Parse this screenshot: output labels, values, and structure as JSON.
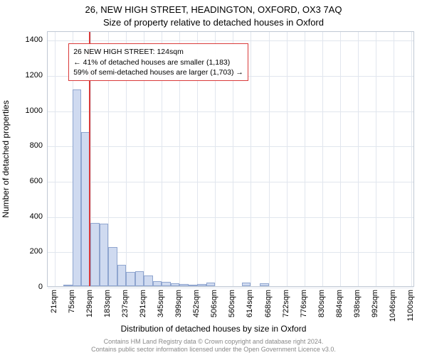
{
  "title": "26, NEW HIGH STREET, HEADINGTON, OXFORD, OX3 7AQ",
  "subtitle": "Size of property relative to detached houses in Oxford",
  "y_axis_label": "Number of detached properties",
  "x_axis_label": "Distribution of detached houses by size in Oxford",
  "chart": {
    "type": "histogram",
    "background_color": "#ffffff",
    "grid_color": "#e1e6ee",
    "border_color": "#bfc8d4",
    "bar_fill": "#cfdaf0",
    "bar_stroke": "#8fa5cf",
    "marker_color": "#d93a3a",
    "ylim": [
      0,
      1450
    ],
    "xlim": [
      0,
      1110
    ],
    "y_ticks": [
      0,
      200,
      400,
      600,
      800,
      1000,
      1200,
      1400
    ],
    "x_tick_values": [
      21,
      75,
      129,
      183,
      237,
      291,
      345,
      399,
      452,
      506,
      560,
      614,
      668,
      722,
      776,
      830,
      884,
      938,
      992,
      1046,
      1100
    ],
    "x_tick_labels": [
      "21sqm",
      "75sqm",
      "129sqm",
      "183sqm",
      "237sqm",
      "291sqm",
      "345sqm",
      "399sqm",
      "452sqm",
      "506sqm",
      "560sqm",
      "614sqm",
      "668sqm",
      "722sqm",
      "776sqm",
      "830sqm",
      "884sqm",
      "938sqm",
      "992sqm",
      "1046sqm",
      "1100sqm"
    ],
    "bin_width": 27,
    "bins": [
      {
        "x": 21,
        "count": 0
      },
      {
        "x": 48,
        "count": 10
      },
      {
        "x": 75,
        "count": 1115
      },
      {
        "x": 102,
        "count": 875
      },
      {
        "x": 129,
        "count": 360
      },
      {
        "x": 156,
        "count": 355
      },
      {
        "x": 183,
        "count": 220
      },
      {
        "x": 210,
        "count": 120
      },
      {
        "x": 237,
        "count": 80
      },
      {
        "x": 264,
        "count": 85
      },
      {
        "x": 291,
        "count": 60
      },
      {
        "x": 318,
        "count": 30
      },
      {
        "x": 345,
        "count": 25
      },
      {
        "x": 372,
        "count": 18
      },
      {
        "x": 399,
        "count": 12
      },
      {
        "x": 426,
        "count": 10
      },
      {
        "x": 452,
        "count": 12
      },
      {
        "x": 479,
        "count": 20
      },
      {
        "x": 506,
        "count": 0
      },
      {
        "x": 533,
        "count": 0
      },
      {
        "x": 560,
        "count": 0
      },
      {
        "x": 587,
        "count": 20
      },
      {
        "x": 614,
        "count": 0
      },
      {
        "x": 641,
        "count": 18
      },
      {
        "x": 668,
        "count": 0
      }
    ],
    "marker_x": 124
  },
  "annotation": {
    "border_color": "#d93a3a",
    "bg_color": "rgba(255,255,255,0.95)",
    "line1": "26 NEW HIGH STREET: 124sqm",
    "line2": "← 41% of detached houses are smaller (1,183)",
    "line3": "59% of semi-detached houses are larger (1,703) →"
  },
  "footer_line1": "Contains HM Land Registry data © Crown copyright and database right 2024.",
  "footer_line2": "Contains public sector information licensed under the Open Government Licence v3.0.",
  "fontsize_title": 13,
  "fontsize_ticks": 11,
  "fontsize_axis_label": 12,
  "fontsize_annotation": 10.5,
  "fontsize_footer": 9
}
